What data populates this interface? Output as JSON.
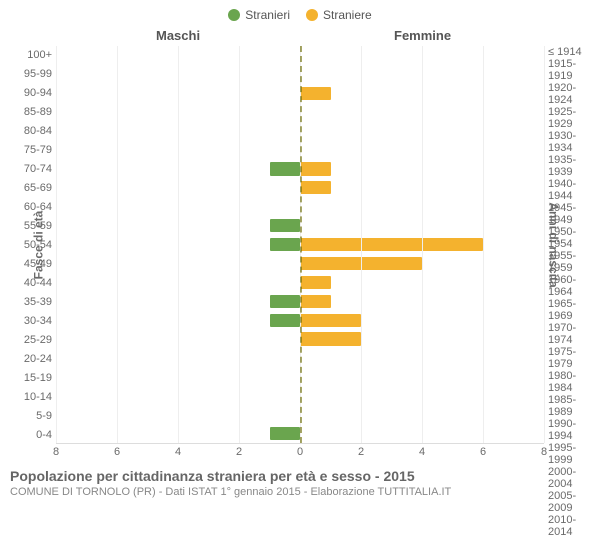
{
  "legend": {
    "items": [
      {
        "label": "Stranieri",
        "color": "#6aa54e"
      },
      {
        "label": "Straniere",
        "color": "#f4b22e"
      }
    ]
  },
  "columns": {
    "left": "Maschi",
    "right": "Femmine"
  },
  "axis_titles": {
    "left": "Fasce di età",
    "right": "Anni di nascita"
  },
  "chart": {
    "type": "population-pyramid",
    "xlim": 8,
    "xtick_step": 2,
    "xticks_left": [
      8,
      6,
      4,
      2,
      0
    ],
    "xticks_right": [
      0,
      2,
      4,
      6,
      8
    ],
    "grid_color": "#eeeeee",
    "zero_color": "#6a6a00",
    "background_color": "#ffffff",
    "male_color": "#6aa54e",
    "female_color": "#f4b22e",
    "bar_width": 0.7,
    "label_fontsize": 11,
    "axis_fontsize": 12,
    "rows": [
      {
        "age": "100+",
        "birth": "≤ 1914",
        "m": 0,
        "f": 0
      },
      {
        "age": "95-99",
        "birth": "1915-1919",
        "m": 0,
        "f": 0
      },
      {
        "age": "90-94",
        "birth": "1920-1924",
        "m": 0,
        "f": 1
      },
      {
        "age": "85-89",
        "birth": "1925-1929",
        "m": 0,
        "f": 0
      },
      {
        "age": "80-84",
        "birth": "1930-1934",
        "m": 0,
        "f": 0
      },
      {
        "age": "75-79",
        "birth": "1935-1939",
        "m": 0,
        "f": 0
      },
      {
        "age": "70-74",
        "birth": "1940-1944",
        "m": 1,
        "f": 1
      },
      {
        "age": "65-69",
        "birth": "1945-1949",
        "m": 0,
        "f": 1
      },
      {
        "age": "60-64",
        "birth": "1950-1954",
        "m": 0,
        "f": 0
      },
      {
        "age": "55-59",
        "birth": "1955-1959",
        "m": 1,
        "f": 0
      },
      {
        "age": "50-54",
        "birth": "1960-1964",
        "m": 1,
        "f": 6
      },
      {
        "age": "45-49",
        "birth": "1965-1969",
        "m": 0,
        "f": 4
      },
      {
        "age": "40-44",
        "birth": "1970-1974",
        "m": 0,
        "f": 1
      },
      {
        "age": "35-39",
        "birth": "1975-1979",
        "m": 1,
        "f": 1
      },
      {
        "age": "30-34",
        "birth": "1980-1984",
        "m": 1,
        "f": 2
      },
      {
        "age": "25-29",
        "birth": "1985-1989",
        "m": 0,
        "f": 2
      },
      {
        "age": "20-24",
        "birth": "1990-1994",
        "m": 0,
        "f": 0
      },
      {
        "age": "15-19",
        "birth": "1995-1999",
        "m": 0,
        "f": 0
      },
      {
        "age": "10-14",
        "birth": "2000-2004",
        "m": 0,
        "f": 0
      },
      {
        "age": "5-9",
        "birth": "2005-2009",
        "m": 0,
        "f": 0
      },
      {
        "age": "0-4",
        "birth": "2010-2014",
        "m": 1,
        "f": 0
      }
    ]
  },
  "footer": {
    "title": "Popolazione per cittadinanza straniera per età e sesso - 2015",
    "subtitle": "COMUNE DI TORNOLO (PR) - Dati ISTAT 1° gennaio 2015 - Elaborazione TUTTITALIA.IT"
  }
}
